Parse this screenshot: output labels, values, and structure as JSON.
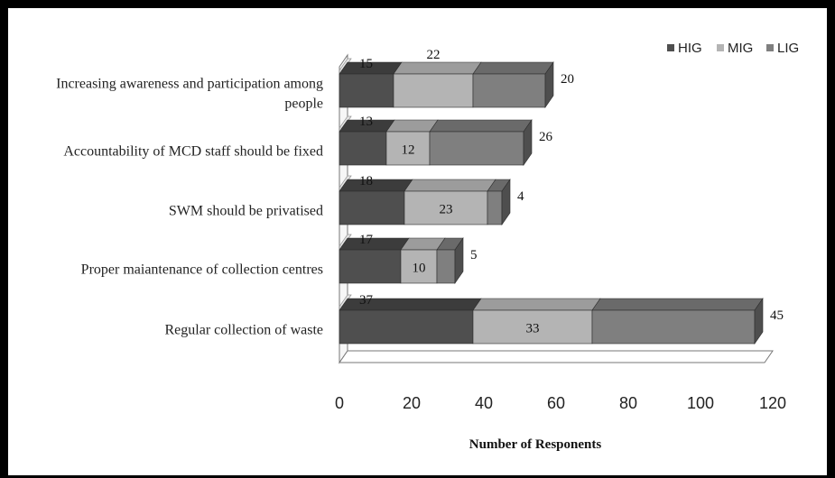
{
  "chart_data": {
    "type": "bar",
    "orientation": "horizontal",
    "stacked": true,
    "three_d": true,
    "categories": [
      "Increasing awareness and participation among people",
      "Accountability  of MCD staff should be fixed",
      "SWM should be privatised",
      "Proper maiantenance of collection centres",
      "Regular collection of waste"
    ],
    "category_lines": [
      [
        "Increasing awareness and participation among",
        "people"
      ],
      [
        "Accountability  of MCD staff should be fixed"
      ],
      [
        "SWM should be privatised"
      ],
      [
        "Proper maiantenance of collection centres"
      ],
      [
        "Regular collection of waste"
      ]
    ],
    "series": [
      {
        "name": "HIG",
        "values": [
          15,
          13,
          18,
          17,
          37
        ],
        "color": "#4f4f4f",
        "top": "#3c3c3c",
        "side": "#2a2a2a"
      },
      {
        "name": "MIG",
        "values": [
          22,
          12,
          23,
          10,
          33
        ],
        "color": "#b4b4b4",
        "top": "#9c9c9c",
        "side": "#7e7e7e"
      },
      {
        "name": "LIG",
        "values": [
          20,
          26,
          4,
          5,
          45
        ],
        "color": "#7f7f7f",
        "top": "#6a6a6a",
        "side": "#4e4e4e"
      }
    ],
    "data_label_series": [
      0,
      1,
      2
    ],
    "xlabel": "Number of Responents",
    "ylabel": "",
    "xlim": [
      0,
      120
    ],
    "xticks": [
      "0",
      "20",
      "40",
      "60",
      "80",
      "100",
      "120"
    ],
    "grid": false,
    "legend_position": "top-right"
  }
}
